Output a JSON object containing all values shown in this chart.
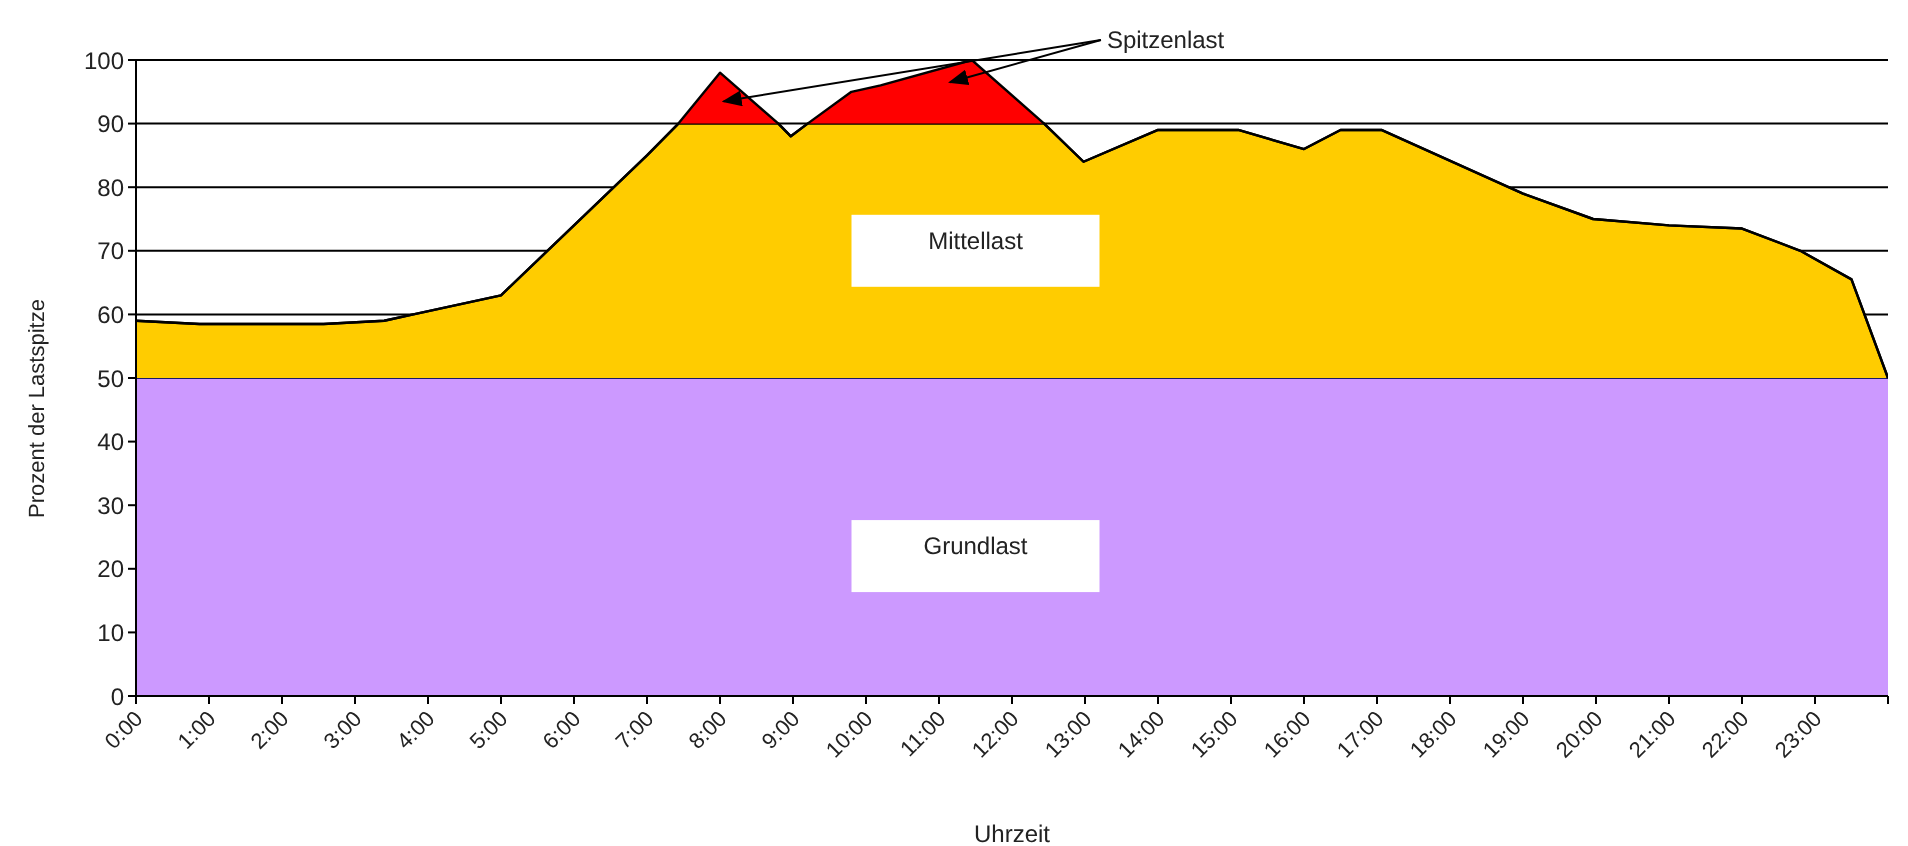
{
  "chart_data": {
    "type": "area",
    "stacked": true,
    "xlabel": "Uhrzeit",
    "ylabel": "Prozent der Lastspitze",
    "x": [
      0,
      0.87,
      2.57,
      3.4,
      3.8,
      5,
      6,
      7,
      7.43,
      8,
      8.8,
      8.97,
      9.2,
      9.8,
      10.2,
      11.45,
      12.44,
      12.98,
      14,
      15.1,
      16,
      16.5,
      17.06,
      19,
      19.96,
      21,
      22,
      22.8,
      23.5,
      24
    ],
    "series": [
      {
        "name": "Grundlast",
        "color": "#cc99ff",
        "values": [
          50,
          50,
          50,
          50,
          50,
          50,
          50,
          50,
          50,
          50,
          50,
          50,
          50,
          50,
          50,
          50,
          50,
          50,
          50,
          50,
          50,
          50,
          50,
          50,
          50,
          50,
          50,
          50,
          50,
          50
        ]
      },
      {
        "name": "Mittellast",
        "color": "#ffcc00",
        "values": [
          9,
          8.5,
          8.5,
          9,
          10,
          13,
          24,
          35,
          40,
          40,
          40,
          38,
          40,
          40,
          40,
          40,
          40,
          34,
          39,
          39,
          36,
          39,
          39,
          29,
          25,
          24,
          23.5,
          20,
          15.5,
          0
        ]
      },
      {
        "name": "Spitzenlast",
        "color": "#ff0000",
        "values": [
          0,
          0,
          0,
          0,
          0,
          0,
          0,
          0,
          0,
          8,
          0,
          0,
          0,
          5,
          6,
          10,
          0,
          0,
          0,
          0,
          0,
          0,
          0,
          0,
          0,
          0,
          0,
          0,
          0,
          0
        ]
      }
    ],
    "xlim": [
      0,
      24
    ],
    "xticks": [
      {
        "value": 0,
        "label": "0:00"
      },
      {
        "value": 1,
        "label": "1:00"
      },
      {
        "value": 2,
        "label": "2:00"
      },
      {
        "value": 3,
        "label": "3:00"
      },
      {
        "value": 4,
        "label": "4:00"
      },
      {
        "value": 5,
        "label": "5:00"
      },
      {
        "value": 6,
        "label": "6:00"
      },
      {
        "value": 7,
        "label": "7:00"
      },
      {
        "value": 8,
        "label": "8:00"
      },
      {
        "value": 9,
        "label": "9:00"
      },
      {
        "value": 10,
        "label": "10:00"
      },
      {
        "value": 11,
        "label": "11:00"
      },
      {
        "value": 12,
        "label": "12:00"
      },
      {
        "value": 13,
        "label": "13:00"
      },
      {
        "value": 14,
        "label": "14:00"
      },
      {
        "value": 15,
        "label": "15:00"
      },
      {
        "value": 16,
        "label": "16:00"
      },
      {
        "value": 17,
        "label": "17:00"
      },
      {
        "value": 18,
        "label": "18:00"
      },
      {
        "value": 19,
        "label": "19:00"
      },
      {
        "value": 20,
        "label": "20:00"
      },
      {
        "value": 21,
        "label": "21:00"
      },
      {
        "value": 22,
        "label": "22:00"
      },
      {
        "value": 23,
        "label": "23:00"
      },
      {
        "value": 24,
        "label": null
      }
    ],
    "ylim": [
      0,
      100
    ],
    "yticks": [
      0,
      10,
      20,
      30,
      40,
      50,
      60,
      70,
      80,
      90,
      100
    ],
    "grid": "y"
  }
}
